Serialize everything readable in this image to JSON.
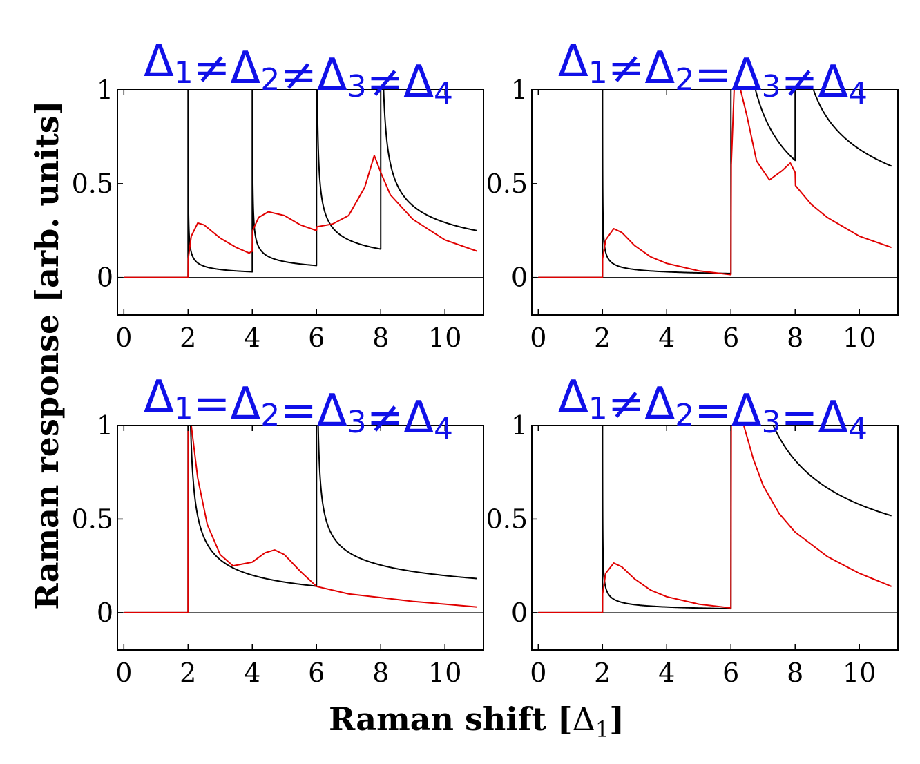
{
  "figure": {
    "ylabel": "Raman response [arb. units]",
    "xlabel_text": "Raman shift [",
    "xlabel_symbol": "Δ",
    "xlabel_sub": "1",
    "xlabel_close": "]"
  },
  "chart_data": [
    {
      "type": "line",
      "title_parts": [
        "Δ",
        "1",
        "≠",
        "Δ",
        "2",
        "≠",
        "Δ",
        "3",
        "≠",
        "Δ",
        "4"
      ],
      "xlim": [
        -0.2,
        11.2
      ],
      "ylim": [
        -0.2,
        1.0
      ],
      "xticks": [
        0,
        2,
        4,
        6,
        8,
        10
      ],
      "yticks": [
        0,
        0.5,
        1
      ],
      "ytick_labels": [
        "0",
        "0.5",
        "1"
      ],
      "series": [
        {
          "name": "black",
          "color": "#000000",
          "kind": "bcs",
          "edges": [
            2,
            4,
            6,
            8
          ],
          "amp": [
            0.03,
            0.03,
            0.06,
            0.09
          ]
        },
        {
          "name": "red",
          "color": "#e00000",
          "kind": "points",
          "points": [
            [
              0,
              0
            ],
            [
              2,
              0
            ],
            [
              2.005,
              0.1
            ],
            [
              2.1,
              0.22
            ],
            [
              2.3,
              0.29
            ],
            [
              2.5,
              0.28
            ],
            [
              3,
              0.21
            ],
            [
              3.5,
              0.16
            ],
            [
              3.9,
              0.13
            ],
            [
              4,
              0.14
            ],
            [
              4.01,
              0.25
            ],
            [
              4.2,
              0.32
            ],
            [
              4.5,
              0.35
            ],
            [
              5,
              0.33
            ],
            [
              5.5,
              0.28
            ],
            [
              6,
              0.25
            ],
            [
              6.01,
              0.27
            ],
            [
              6.5,
              0.285
            ],
            [
              7,
              0.33
            ],
            [
              7.5,
              0.48
            ],
            [
              7.8,
              0.65
            ],
            [
              8,
              0.56
            ],
            [
              8.3,
              0.44
            ],
            [
              9,
              0.31
            ],
            [
              10,
              0.2
            ],
            [
              11,
              0.14
            ]
          ]
        }
      ]
    },
    {
      "type": "line",
      "title_parts": [
        "Δ",
        "1",
        "≠",
        "Δ",
        "2",
        "=",
        "Δ",
        "3",
        "≠",
        "Δ",
        "4"
      ],
      "xlim": [
        -0.2,
        11.2
      ],
      "ylim": [
        -0.2,
        1.0
      ],
      "xticks": [
        0,
        2,
        4,
        6,
        8,
        10
      ],
      "yticks": [
        0,
        0.5,
        1
      ],
      "ytick_labels": [
        "0",
        "0.5",
        "1"
      ],
      "series": [
        {
          "name": "black",
          "color": "#000000",
          "kind": "bcs",
          "edges": [
            2,
            6,
            8
          ],
          "amp": [
            0.03,
            0.35,
            0.12
          ]
        },
        {
          "name": "red",
          "color": "#e00000",
          "kind": "points",
          "points": [
            [
              0,
              0
            ],
            [
              2,
              0
            ],
            [
              2.005,
              0.1
            ],
            [
              2.1,
              0.2
            ],
            [
              2.35,
              0.26
            ],
            [
              2.6,
              0.24
            ],
            [
              3,
              0.17
            ],
            [
              3.5,
              0.11
            ],
            [
              4,
              0.075
            ],
            [
              5,
              0.035
            ],
            [
              6,
              0.015
            ],
            [
              6.01,
              0.6
            ],
            [
              6.1,
              1.0
            ],
            [
              6.3,
              1.0
            ],
            [
              6.5,
              0.86
            ],
            [
              6.8,
              0.62
            ],
            [
              7.2,
              0.52
            ],
            [
              7.6,
              0.57
            ],
            [
              7.85,
              0.61
            ],
            [
              8,
              0.56
            ],
            [
              8.01,
              0.49
            ],
            [
              8.5,
              0.39
            ],
            [
              9,
              0.32
            ],
            [
              10,
              0.22
            ],
            [
              11,
              0.16
            ]
          ]
        }
      ]
    },
    {
      "type": "line",
      "title_parts": [
        "Δ",
        "1",
        "=",
        "Δ",
        "2",
        "=",
        "Δ",
        "3",
        "≠",
        "Δ",
        "4"
      ],
      "xlim": [
        -0.2,
        11.2
      ],
      "ylim": [
        -0.2,
        1.0
      ],
      "xticks": [
        0,
        2,
        4,
        6,
        8,
        10
      ],
      "yticks": [
        0,
        0.5,
        1
      ],
      "ytick_labels": [
        "0",
        "0.5",
        "1"
      ],
      "series": [
        {
          "name": "black",
          "color": "#000000",
          "kind": "bcs",
          "edges": [
            2,
            6
          ],
          "amp": [
            0.2,
            0.08
          ]
        },
        {
          "name": "red",
          "color": "#e00000",
          "kind": "points",
          "points": [
            [
              0,
              0
            ],
            [
              2,
              0
            ],
            [
              2.005,
              1.0
            ],
            [
              2.1,
              1.0
            ],
            [
              2.3,
              0.72
            ],
            [
              2.6,
              0.47
            ],
            [
              3,
              0.31
            ],
            [
              3.4,
              0.25
            ],
            [
              4,
              0.27
            ],
            [
              4.4,
              0.32
            ],
            [
              4.7,
              0.335
            ],
            [
              5,
              0.31
            ],
            [
              5.5,
              0.22
            ],
            [
              6,
              0.14
            ],
            [
              7,
              0.1
            ],
            [
              8,
              0.08
            ],
            [
              9,
              0.06
            ],
            [
              10,
              0.045
            ],
            [
              11,
              0.03
            ]
          ]
        }
      ]
    },
    {
      "type": "line",
      "title_parts": [
        "Δ",
        "1",
        "≠",
        "Δ",
        "2",
        "=",
        "Δ",
        "3",
        "=",
        "Δ",
        "4"
      ],
      "xlim": [
        -0.2,
        11.2
      ],
      "ylim": [
        -0.2,
        1.0
      ],
      "xticks": [
        0,
        2,
        4,
        6,
        8,
        10
      ],
      "yticks": [
        0,
        0.5,
        1
      ],
      "ytick_labels": [
        "0",
        "0.5",
        "1"
      ],
      "series": [
        {
          "name": "black",
          "color": "#000000",
          "kind": "bcs",
          "edges": [
            2,
            6
          ],
          "amp": [
            0.03,
            0.46
          ]
        },
        {
          "name": "red",
          "color": "#e00000",
          "kind": "points",
          "points": [
            [
              0,
              0
            ],
            [
              2,
              0
            ],
            [
              2.005,
              0.1
            ],
            [
              2.1,
              0.21
            ],
            [
              2.35,
              0.265
            ],
            [
              2.6,
              0.245
            ],
            [
              3,
              0.18
            ],
            [
              3.5,
              0.12
            ],
            [
              4,
              0.085
            ],
            [
              5,
              0.045
            ],
            [
              6,
              0.025
            ],
            [
              6.01,
              1.0
            ],
            [
              6.4,
              1.0
            ],
            [
              6.7,
              0.82
            ],
            [
              7,
              0.68
            ],
            [
              7.5,
              0.53
            ],
            [
              8,
              0.43
            ],
            [
              9,
              0.3
            ],
            [
              10,
              0.21
            ],
            [
              11,
              0.14
            ]
          ]
        }
      ]
    }
  ]
}
